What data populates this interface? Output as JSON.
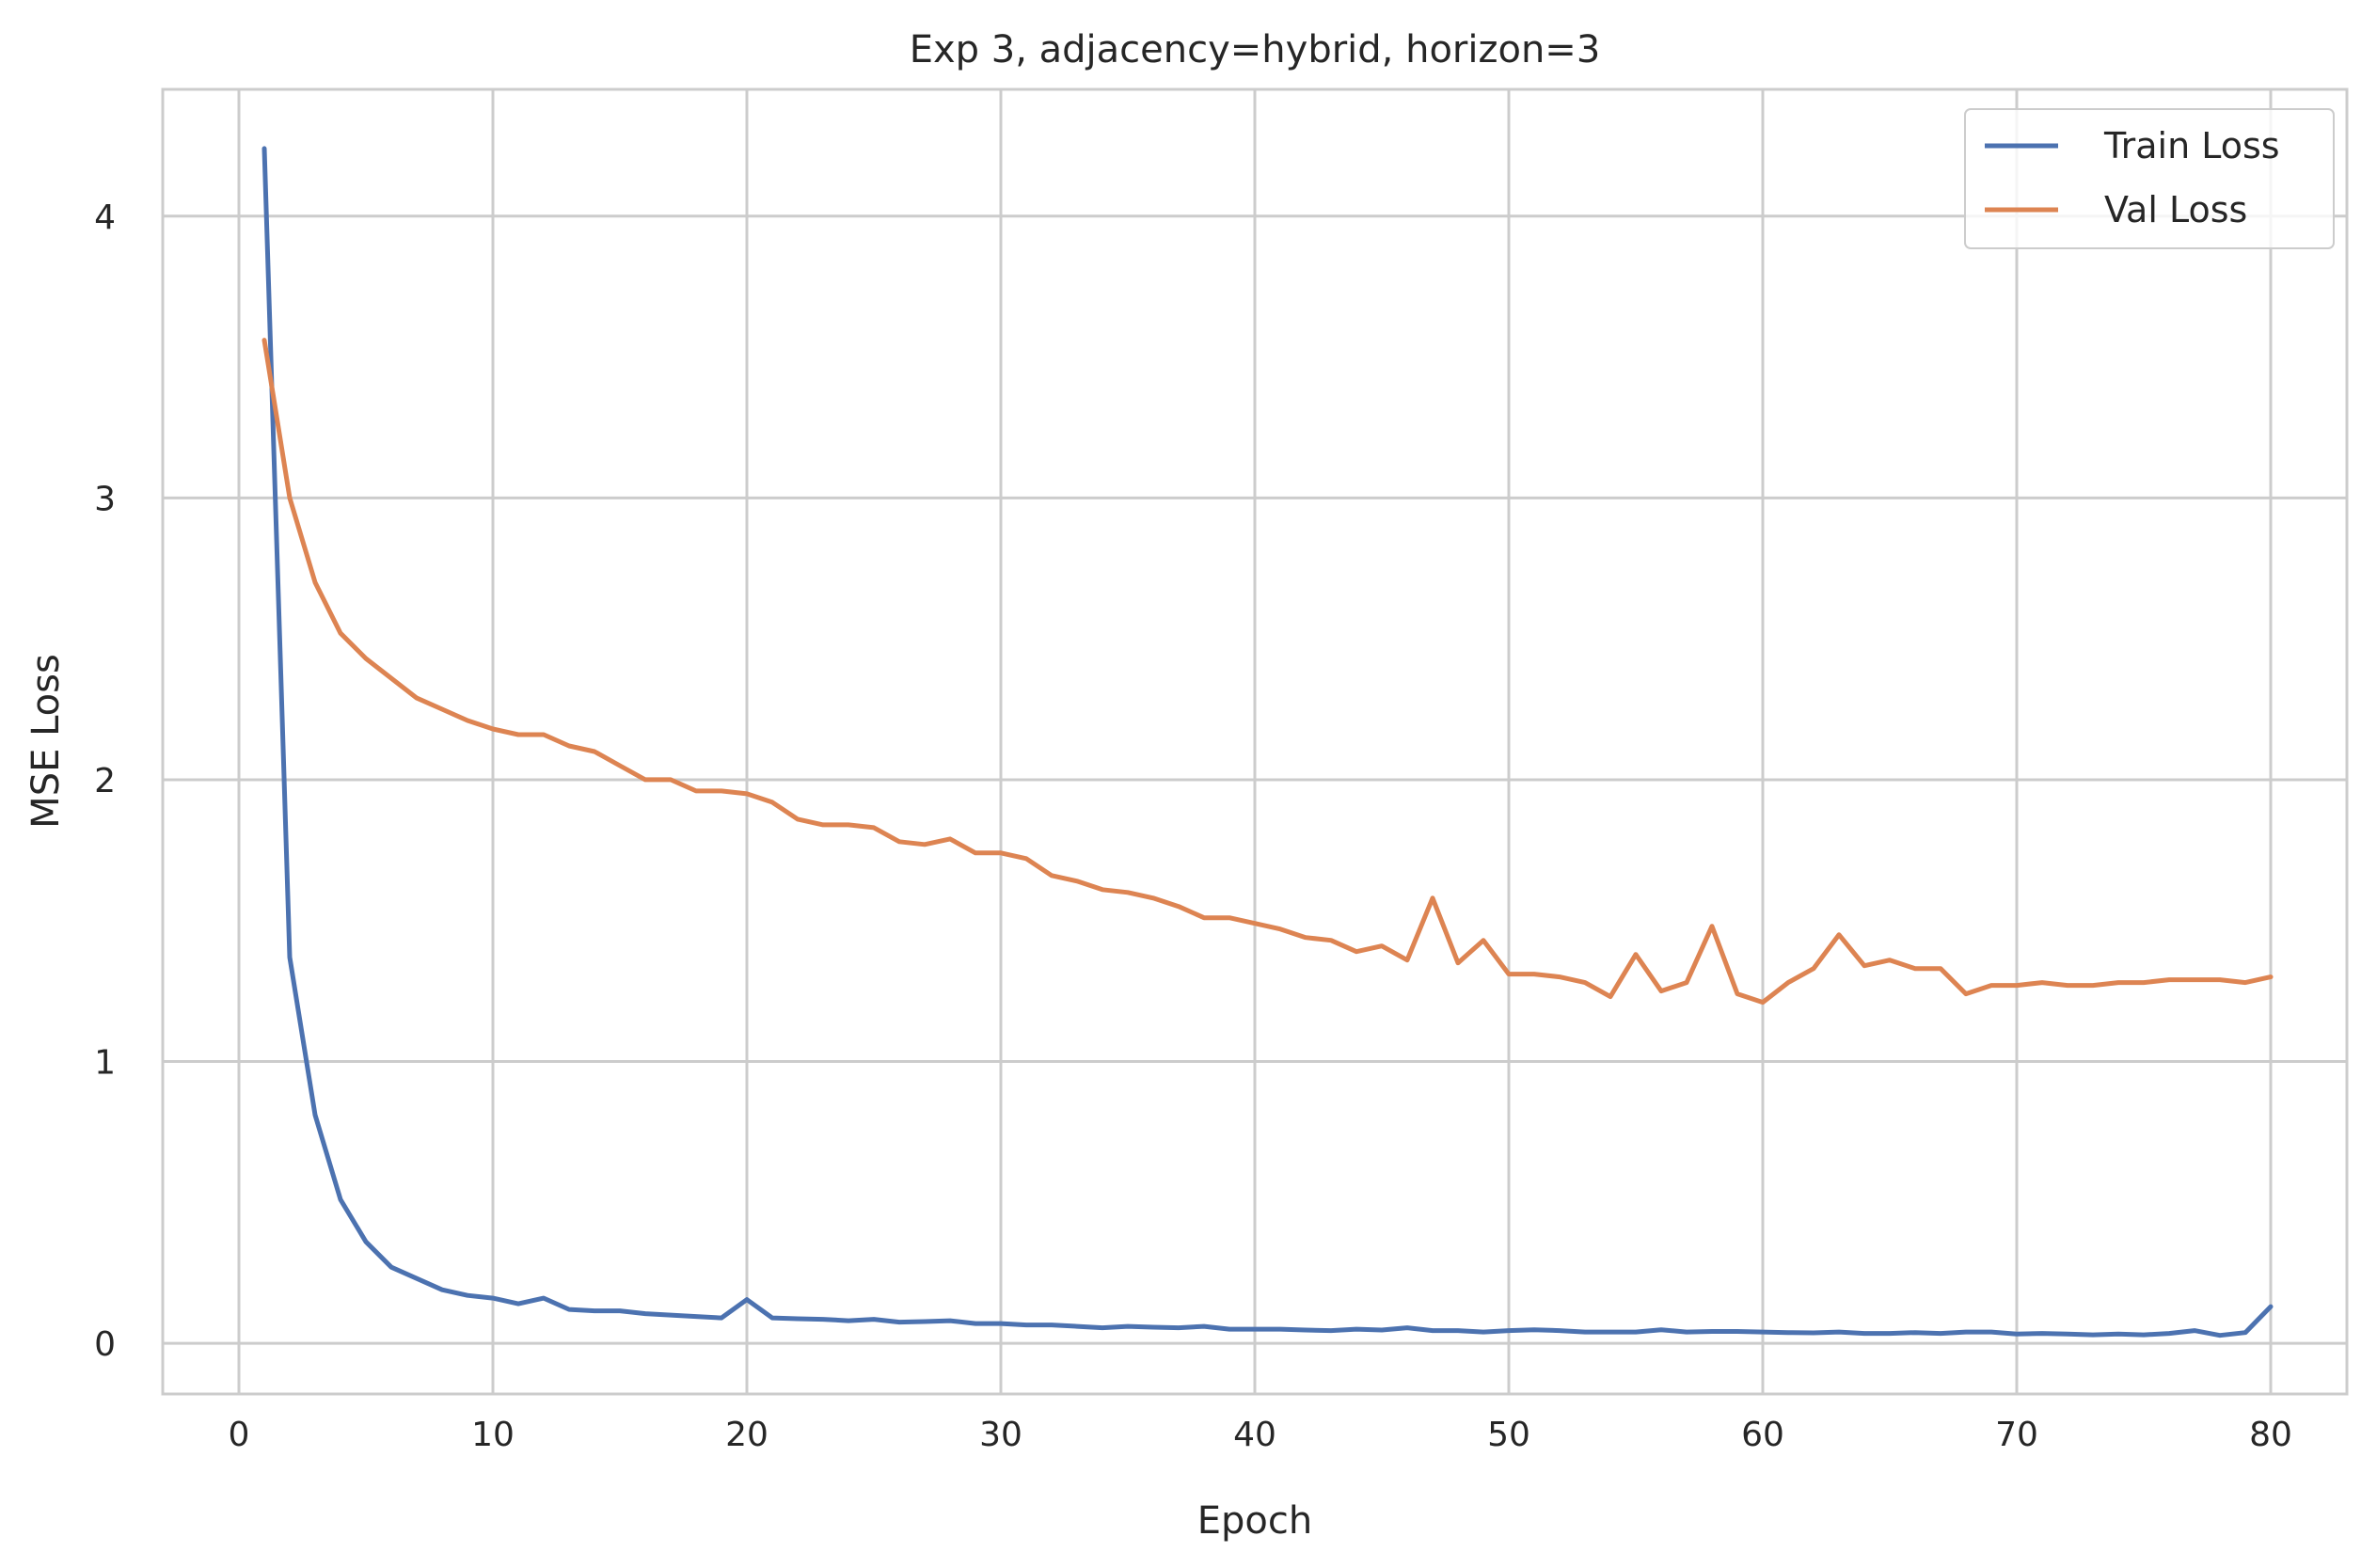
{
  "chart_data": {
    "type": "line",
    "title": "Exp 3, adjacency=hybrid, horizon=3",
    "xlabel": "Epoch",
    "ylabel": "MSE Loss",
    "xlim": [
      -3,
      83
    ],
    "ylim": [
      -0.18,
      4.45
    ],
    "xticks": [
      0,
      10,
      20,
      30,
      40,
      50,
      60,
      70,
      80
    ],
    "yticks": [
      0,
      1,
      2,
      3,
      4
    ],
    "grid": true,
    "legend_position": "top-right",
    "series": [
      {
        "name": "Train Loss",
        "color": "#4c72b0",
        "x": [
          1,
          2,
          3,
          4,
          5,
          6,
          7,
          8,
          9,
          10,
          11,
          12,
          13,
          14,
          15,
          16,
          17,
          18,
          19,
          20,
          21,
          22,
          23,
          24,
          25,
          26,
          27,
          28,
          29,
          30,
          31,
          32,
          33,
          34,
          35,
          36,
          37,
          38,
          39,
          40,
          41,
          42,
          43,
          44,
          45,
          46,
          47,
          48,
          49,
          50,
          51,
          52,
          53,
          54,
          55,
          56,
          57,
          58,
          59,
          60,
          61,
          62,
          63,
          64,
          65,
          66,
          67,
          68,
          69,
          70,
          71,
          72,
          73,
          74,
          75,
          76,
          77,
          78,
          79,
          80
        ],
        "values": [
          4.24,
          1.37,
          0.81,
          0.51,
          0.36,
          0.27,
          0.23,
          0.19,
          0.17,
          0.16,
          0.14,
          0.16,
          0.12,
          0.115,
          0.115,
          0.105,
          0.1,
          0.095,
          0.09,
          0.155,
          0.09,
          0.087,
          0.085,
          0.08,
          0.085,
          0.075,
          0.077,
          0.08,
          0.07,
          0.07,
          0.065,
          0.065,
          0.06,
          0.055,
          0.06,
          0.057,
          0.055,
          0.06,
          0.05,
          0.05,
          0.05,
          0.047,
          0.045,
          0.05,
          0.047,
          0.055,
          0.045,
          0.045,
          0.04,
          0.045,
          0.048,
          0.045,
          0.04,
          0.04,
          0.04,
          0.048,
          0.04,
          0.042,
          0.042,
          0.04,
          0.038,
          0.037,
          0.04,
          0.035,
          0.035,
          0.038,
          0.035,
          0.04,
          0.04,
          0.033,
          0.035,
          0.033,
          0.03,
          0.033,
          0.03,
          0.035,
          0.045,
          0.028,
          0.038,
          0.13
        ]
      },
      {
        "name": "Val Loss",
        "color": "#dd8452",
        "x": [
          1,
          2,
          3,
          4,
          5,
          6,
          7,
          8,
          9,
          10,
          11,
          12,
          13,
          14,
          15,
          16,
          17,
          18,
          19,
          20,
          21,
          22,
          23,
          24,
          25,
          26,
          27,
          28,
          29,
          30,
          31,
          32,
          33,
          34,
          35,
          36,
          37,
          38,
          39,
          40,
          41,
          42,
          43,
          44,
          45,
          46,
          47,
          48,
          49,
          50,
          51,
          52,
          53,
          54,
          55,
          56,
          57,
          58,
          59,
          60,
          61,
          62,
          63,
          64,
          65,
          66,
          67,
          68,
          69,
          70,
          71,
          72,
          73,
          74,
          75,
          76,
          77,
          78,
          79,
          80
        ],
        "values": [
          3.56,
          3.0,
          2.7,
          2.52,
          2.43,
          2.36,
          2.29,
          2.25,
          2.21,
          2.18,
          2.16,
          2.16,
          2.12,
          2.1,
          2.05,
          2.0,
          2.0,
          1.96,
          1.96,
          1.95,
          1.92,
          1.86,
          1.84,
          1.84,
          1.83,
          1.78,
          1.77,
          1.79,
          1.74,
          1.74,
          1.72,
          1.66,
          1.64,
          1.61,
          1.6,
          1.58,
          1.55,
          1.51,
          1.51,
          1.49,
          1.47,
          1.44,
          1.43,
          1.39,
          1.41,
          1.36,
          1.58,
          1.35,
          1.43,
          1.31,
          1.31,
          1.3,
          1.28,
          1.23,
          1.38,
          1.25,
          1.28,
          1.48,
          1.24,
          1.21,
          1.28,
          1.33,
          1.45,
          1.34,
          1.36,
          1.33,
          1.33,
          1.24,
          1.27,
          1.27,
          1.28,
          1.27,
          1.27,
          1.28,
          1.28,
          1.29,
          1.29,
          1.29,
          1.28,
          1.3
        ]
      }
    ]
  }
}
